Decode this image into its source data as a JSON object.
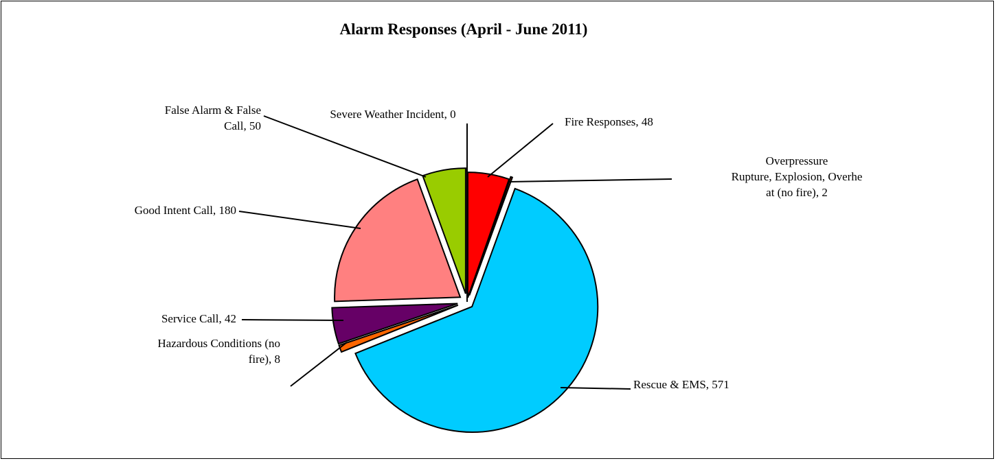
{
  "chart_data": {
    "type": "pie",
    "title": "Alarm Responses (April - June 2011)",
    "legend": "none",
    "data_labels": "category name and value, with leader lines",
    "slices": [
      {
        "name": "Fire Responses",
        "value": 48,
        "color": "#ff0000",
        "label_lines": [
          "Fire Responses, 48"
        ]
      },
      {
        "name": "Overpressure Rupture, Explosion, Overheat (no fire)",
        "value": 2,
        "color": "#993300",
        "label_lines": [
          "Overpressure",
          "Rupture, Explosion, Overhe",
          "at (no fire), 2"
        ]
      },
      {
        "name": "Rescue & EMS",
        "value": 571,
        "color": "#00ccff",
        "label_lines": [
          "Rescue & EMS, 571"
        ]
      },
      {
        "name": "Hazardous Conditions (no fire)",
        "value": 8,
        "color": "#ff6600",
        "label_lines": [
          "Hazardous Conditions (no",
          "fire), 8"
        ]
      },
      {
        "name": "Service Call",
        "value": 42,
        "color": "#660066",
        "label_lines": [
          "Service Call, 42"
        ]
      },
      {
        "name": "Good Intent Call",
        "value": 180,
        "color": "#ff8080",
        "label_lines": [
          "Good Intent Call, 180"
        ]
      },
      {
        "name": "False Alarm & False Call",
        "value": 50,
        "color": "#99cc00",
        "label_lines": [
          "False Alarm & False",
          "Call, 50"
        ]
      },
      {
        "name": "Severe Weather Incident",
        "value": 0,
        "color": "#ffff00",
        "label_lines": [
          "Severe Weather Incident, 0"
        ]
      }
    ]
  }
}
